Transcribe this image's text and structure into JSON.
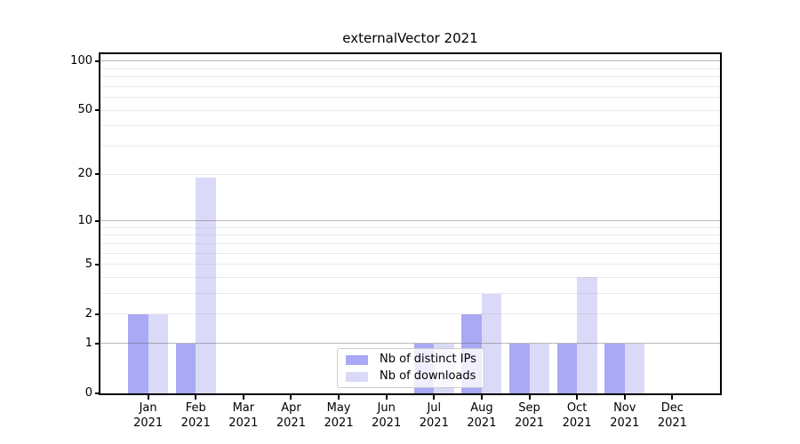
{
  "chart_data": {
    "type": "bar",
    "title": "externalVector 2021",
    "categories": [
      "Jan 2021",
      "Feb 2021",
      "Mar 2021",
      "Apr 2021",
      "May 2021",
      "Jun 2021",
      "Jul 2021",
      "Aug 2021",
      "Sep 2021",
      "Oct 2021",
      "Nov 2021",
      "Dec 2021"
    ],
    "series": [
      {
        "name": "Nb of distinct IPs",
        "color": "#a9a9f5",
        "values": [
          2,
          1,
          0,
          0,
          0,
          0,
          1,
          2,
          1,
          1,
          1,
          0
        ]
      },
      {
        "name": "Nb of downloads",
        "color": "#dadaf8",
        "values": [
          2,
          19,
          0,
          0,
          0,
          0,
          1,
          3,
          1,
          4,
          1,
          0
        ]
      }
    ],
    "xlabel": "",
    "ylabel": "",
    "yscale": "log1p",
    "ylim": [
      0,
      110
    ],
    "yticks": [
      0,
      1,
      2,
      5,
      10,
      20,
      50,
      100
    ],
    "minor_gridlines": [
      2,
      3,
      4,
      5,
      6,
      7,
      8,
      9,
      20,
      30,
      40,
      50,
      60,
      70,
      80,
      90
    ],
    "major_gridlines": [
      1,
      10,
      100
    ],
    "legend_position": "lower center",
    "grid": true
  }
}
